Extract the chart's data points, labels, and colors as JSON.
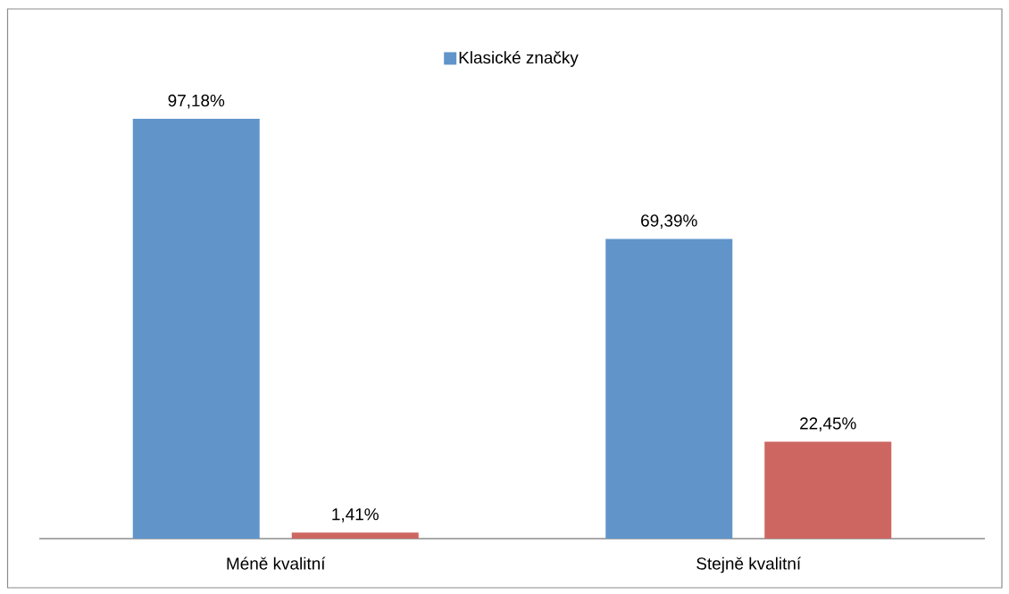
{
  "chart_data": {
    "type": "bar",
    "categories": [
      "Méně kvalitní",
      "Stejně kvalitní"
    ],
    "series": [
      {
        "name": "Klasické značky",
        "color": "#6195ca",
        "values": [
          97.18,
          69.39
        ],
        "value_labels": [
          "97,18%",
          "69,39%"
        ]
      },
      {
        "color": "#cd6661",
        "values": [
          1.41,
          22.45
        ],
        "value_labels": [
          "1,41%",
          "22,45%"
        ]
      }
    ],
    "legend": "top"
  }
}
